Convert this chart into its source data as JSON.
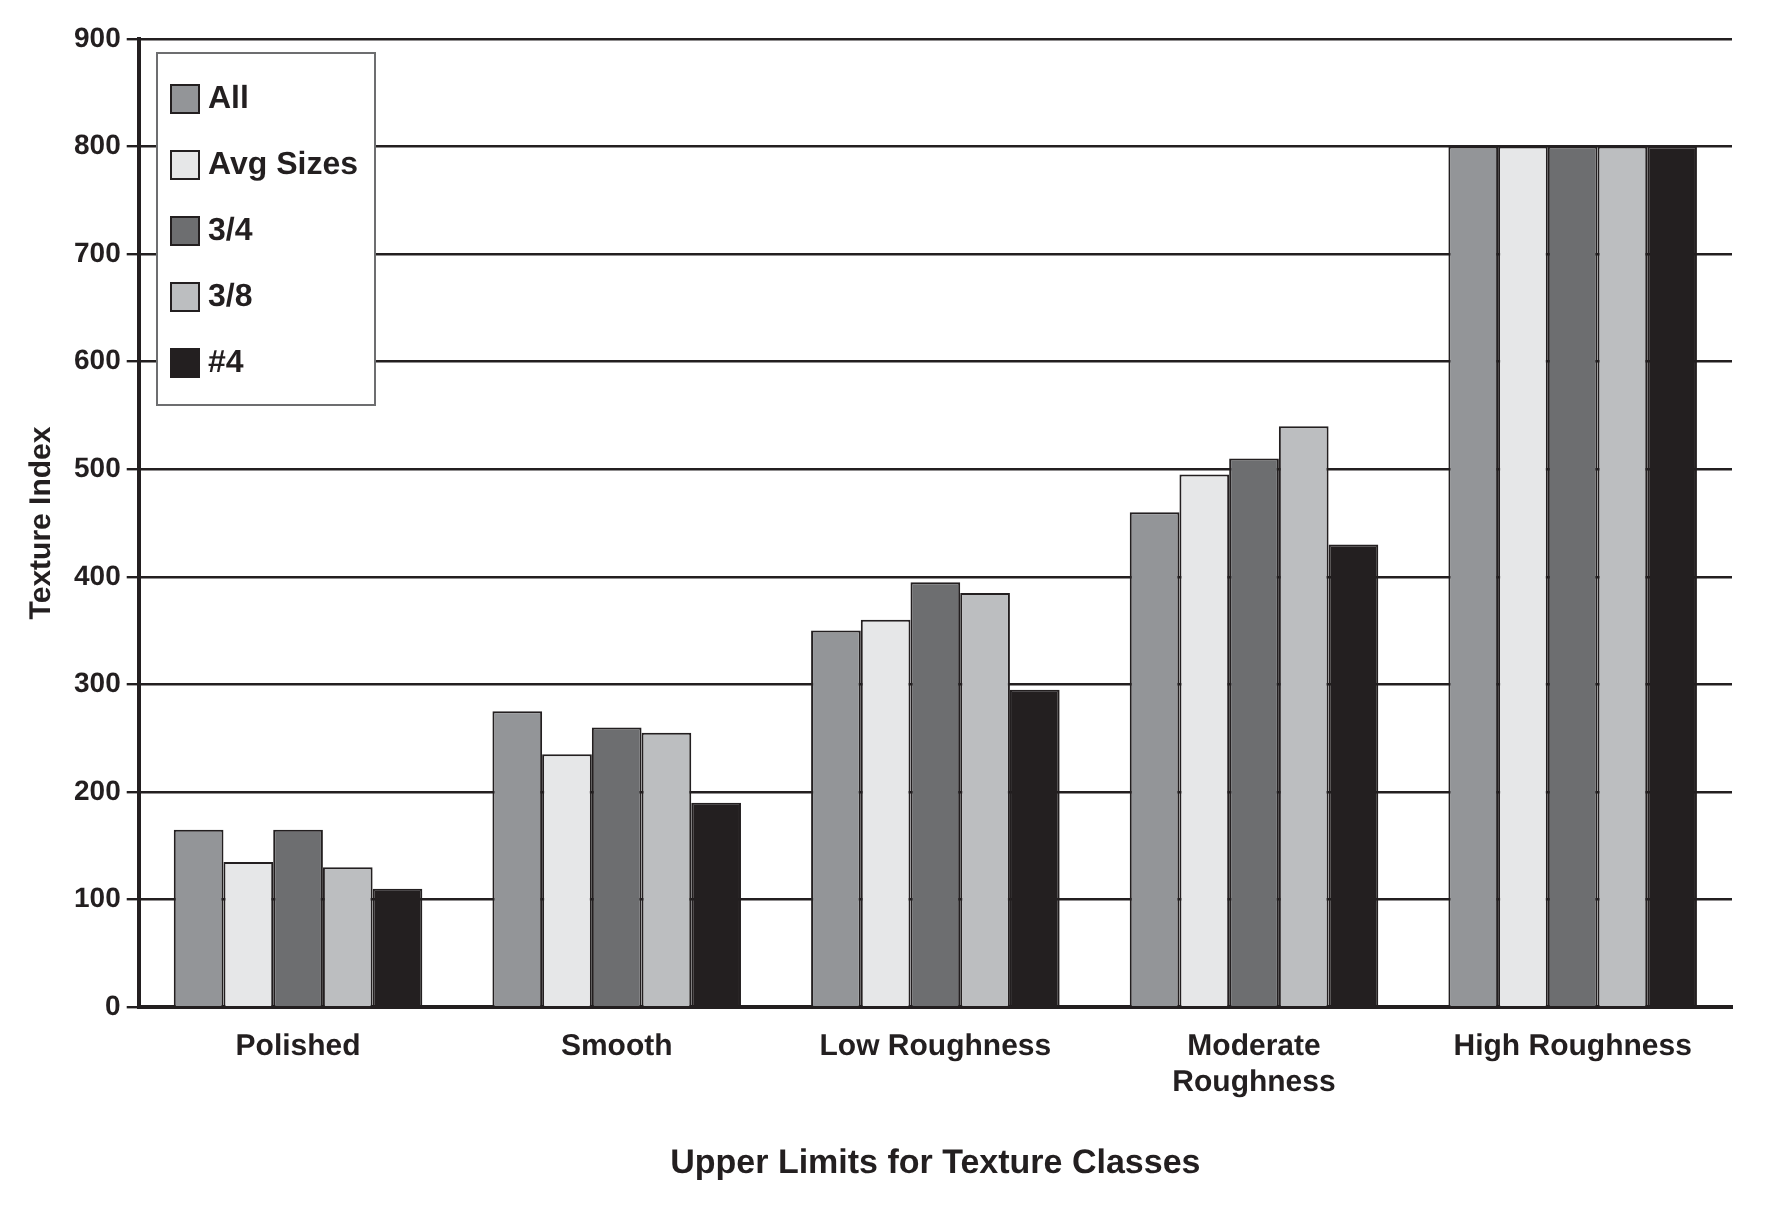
{
  "chart_data": {
    "type": "bar",
    "xlabel": "Upper Limits for Texture Classes",
    "ylabel": "Texture Index",
    "categories": [
      "Polished",
      "Smooth",
      "Low Roughness",
      "Moderate Roughness",
      "High Roughness"
    ],
    "series": [
      {
        "name": "All",
        "color": "#939598",
        "values": [
          165,
          275,
          350,
          460,
          800
        ]
      },
      {
        "name": "Avg Sizes",
        "color": "#e6e7e8",
        "values": [
          135,
          235,
          360,
          495,
          800
        ]
      },
      {
        "name": "3/4",
        "color": "#6d6e70",
        "values": [
          165,
          260,
          395,
          510,
          800
        ]
      },
      {
        "name": "3/8",
        "color": "#bcbec0",
        "values": [
          130,
          255,
          385,
          540,
          800
        ]
      },
      {
        "name": "#4",
        "color": "#231f20",
        "values": [
          110,
          190,
          295,
          430,
          800
        ]
      }
    ],
    "ylim": [
      0,
      900
    ],
    "yticks": [
      0,
      100,
      200,
      300,
      400,
      500,
      600,
      700,
      800,
      900
    ],
    "grid": "y",
    "legend": "top left"
  }
}
